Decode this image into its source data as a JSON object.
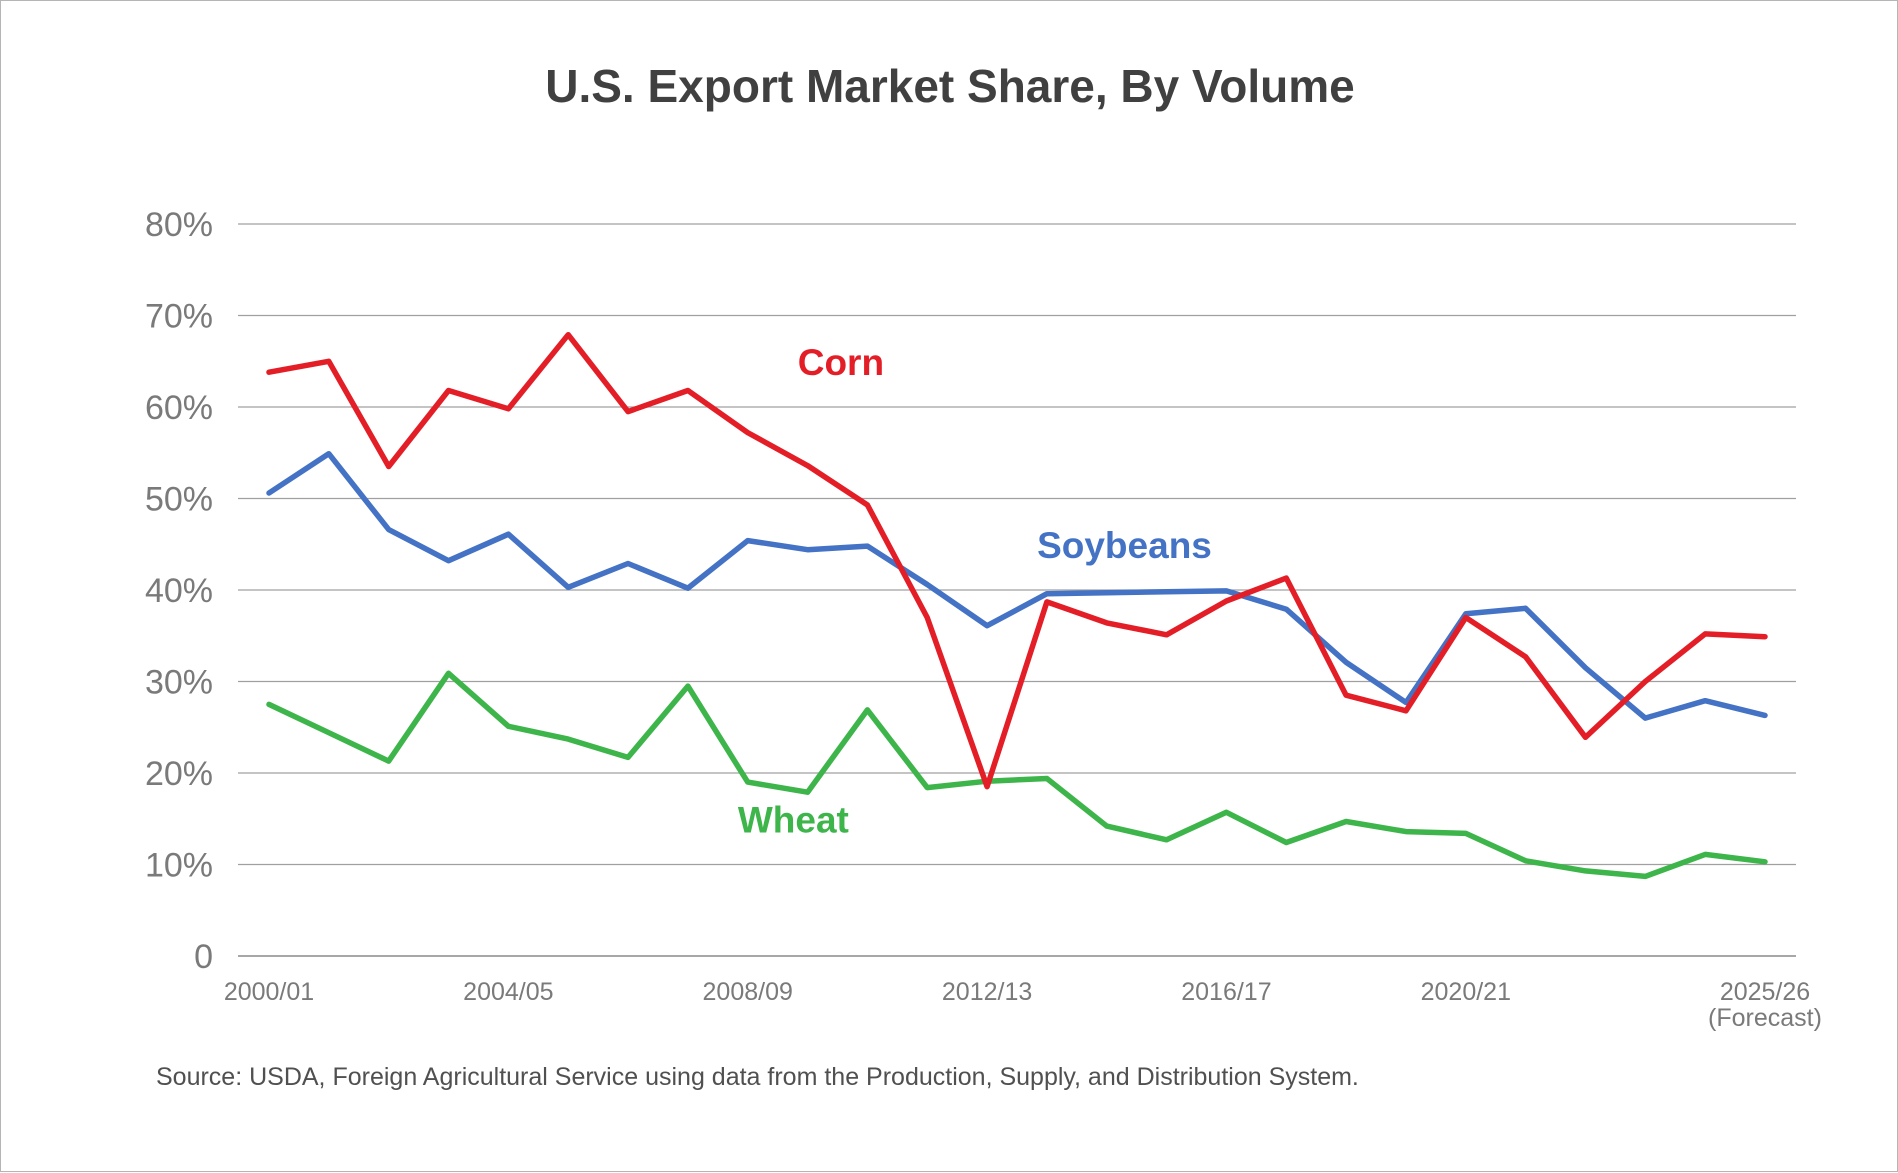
{
  "chart_data": {
    "type": "line",
    "title": "U.S. Export Market Share, By Volume",
    "x": [
      "2000/01",
      "2001/02",
      "2002/03",
      "2003/04",
      "2004/05",
      "2005/06",
      "2006/07",
      "2007/08",
      "2008/09",
      "2009/10",
      "2010/11",
      "2011/12",
      "2012/13",
      "2013/14",
      "2014/15",
      "2015/16",
      "2016/17",
      "2017/18",
      "2018/19",
      "2019/20",
      "2020/21",
      "2021/22",
      "2022/23",
      "2023/24",
      "2024/25",
      "2025/26"
    ],
    "x_tick_labels": [
      {
        "label": "2000/01",
        "at": "2000/01"
      },
      {
        "label": "2004/05",
        "at": "2004/05"
      },
      {
        "label": "2008/09",
        "at": "2008/09"
      },
      {
        "label": "2012/13",
        "at": "2012/13"
      },
      {
        "label": "2016/17",
        "at": "2016/17"
      },
      {
        "label": "2020/21",
        "at": "2020/21"
      },
      {
        "label": "2025/26",
        "at": "2025/26",
        "sub": "(Forecast)"
      }
    ],
    "y_tick_labels": [
      "0",
      "10%",
      "20%",
      "30%",
      "40%",
      "50%",
      "60%",
      "70%",
      "80%"
    ],
    "ylim": [
      0,
      80
    ],
    "grid": true,
    "series": [
      {
        "name": "Corn",
        "color": "#e31e26",
        "values": [
          63.8,
          65.0,
          53.5,
          61.8,
          59.8,
          67.9,
          59.5,
          61.8,
          57.2,
          53.6,
          49.3,
          37.0,
          18.5,
          38.7,
          36.4,
          35.1,
          38.8,
          41.3,
          28.5,
          26.8,
          37.0,
          32.7,
          23.9,
          30.0,
          35.2,
          34.9
        ]
      },
      {
        "name": "Soybeans",
        "color": "#4472c4",
        "values": [
          50.6,
          54.9,
          46.6,
          43.2,
          46.1,
          40.3,
          42.9,
          40.2,
          45.4,
          44.4,
          44.8,
          40.6,
          36.1,
          39.6,
          39.7,
          39.8,
          39.9,
          37.9,
          32.1,
          27.7,
          37.4,
          38.0,
          31.5,
          26.0,
          27.9,
          26.3
        ]
      },
      {
        "name": "Wheat",
        "color": "#3db54a",
        "values": [
          27.5,
          24.4,
          21.3,
          30.9,
          25.1,
          23.7,
          21.7,
          29.5,
          19.0,
          17.9,
          26.9,
          18.4,
          19.1,
          19.4,
          14.2,
          12.7,
          15.7,
          12.4,
          14.7,
          13.6,
          13.4,
          10.4,
          9.3,
          8.7,
          11.1,
          10.3
        ]
      }
    ],
    "series_labels": [
      {
        "name": "Corn",
        "at_x": "2008/09",
        "at_y": 63.5
      },
      {
        "name": "Soybeans",
        "at_x": "2012/13",
        "at_y": 43.5
      },
      {
        "name": "Wheat",
        "at_x": "2007/08",
        "at_y": 13.5
      }
    ],
    "source": "Source: USDA, Foreign Agricultural Service using data from the Production, Supply, and Distribution System."
  }
}
